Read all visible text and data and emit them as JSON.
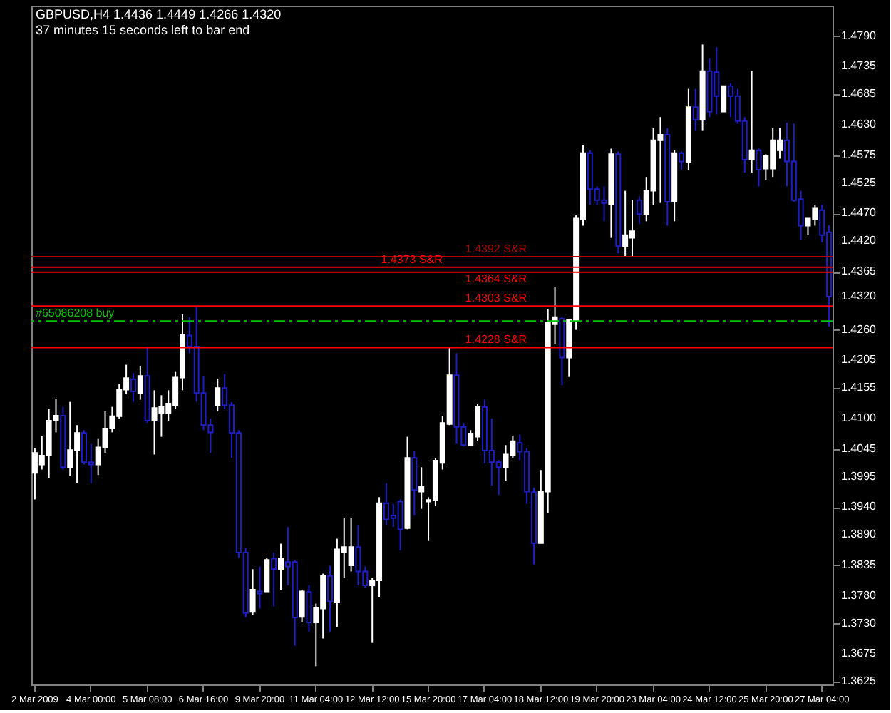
{
  "chart_data": {
    "type": "candlestick",
    "title": "GBPUSD,H4  1.4436 1.4449 1.4266 1.4320",
    "subtitle": "37 minutes 15 seconds left to bar end",
    "categories": [
      "2 Mar 2009",
      null,
      null,
      null,
      null,
      null,
      null,
      null,
      "4 Mar 00:00",
      null,
      null,
      null,
      null,
      null,
      null,
      null,
      "5 Mar 08:00",
      null,
      null,
      null,
      null,
      null,
      null,
      null,
      "6 Mar 16:00",
      null,
      null,
      null,
      null,
      null,
      null,
      null,
      "9 Mar 20:00",
      null,
      null,
      null,
      null,
      null,
      null,
      null,
      "11 Mar 04:00",
      null,
      null,
      null,
      null,
      null,
      null,
      null,
      "12 Mar 12:00",
      null,
      null,
      null,
      null,
      null,
      null,
      null,
      "15 Mar 20:00",
      null,
      null,
      null,
      null,
      null,
      null,
      null,
      "17 Mar 04:00",
      null,
      null,
      null,
      null,
      null,
      null,
      null,
      "18 Mar 12:00",
      null,
      null,
      null,
      null,
      null,
      null,
      null,
      "19 Mar 20:00",
      null,
      null,
      null,
      null,
      null,
      null,
      null,
      "23 Mar 04:00",
      null,
      null,
      null,
      null,
      null,
      null,
      null,
      "24 Mar 12:00",
      null,
      null,
      null,
      null,
      null,
      null,
      null,
      "25 Mar 20:00",
      null,
      null,
      null,
      null,
      null,
      null,
      null,
      "27 Mar 04:00",
      null
    ],
    "ohlc": [
      [
        1.4002,
        1.4046,
        1.3954,
        1.4038
      ],
      [
        1.4017,
        1.4069,
        1.4008,
        1.4033
      ],
      [
        1.4033,
        1.4117,
        1.3992,
        1.4096
      ],
      [
        1.4096,
        1.4136,
        1.4075,
        1.4105
      ],
      [
        1.4105,
        1.4121,
        1.4008,
        1.4012
      ],
      [
        1.4012,
        1.413,
        1.3996,
        1.4043
      ],
      [
        1.4042,
        1.4088,
        1.3983,
        1.4074
      ],
      [
        1.4074,
        1.4079,
        1.4017,
        1.4021
      ],
      [
        1.4021,
        1.4054,
        1.3983,
        1.4017
      ],
      [
        1.4017,
        1.4063,
        1.3998,
        1.4048
      ],
      [
        1.4048,
        1.4113,
        1.4038,
        1.4082
      ],
      [
        1.4082,
        1.4121,
        1.4075,
        1.4104
      ],
      [
        1.4104,
        1.4163,
        1.41,
        1.4152
      ],
      [
        1.4152,
        1.4197,
        1.4144,
        1.4173
      ],
      [
        1.4171,
        1.4182,
        1.413,
        1.4149
      ],
      [
        1.4146,
        1.4194,
        1.4134,
        1.4177
      ],
      [
        1.4177,
        1.423,
        1.4092,
        1.4096
      ],
      [
        1.4096,
        1.4151,
        1.4035,
        1.4119
      ],
      [
        1.4109,
        1.4142,
        1.4067,
        1.4121
      ],
      [
        1.411,
        1.4151,
        1.4096,
        1.4127
      ],
      [
        1.4124,
        1.4184,
        1.4117,
        1.4174
      ],
      [
        1.4174,
        1.4288,
        1.4151,
        1.4251
      ],
      [
        1.425,
        1.4283,
        1.4218,
        1.423
      ],
      [
        1.423,
        1.4301,
        1.413,
        1.4146
      ],
      [
        1.4146,
        1.4176,
        1.4079,
        1.4088
      ],
      [
        1.4088,
        1.41,
        1.4038,
        1.4075
      ],
      [
        1.4124,
        1.4172,
        1.4113,
        1.4155
      ],
      [
        1.4155,
        1.418,
        1.4117,
        1.4124
      ],
      [
        1.4124,
        1.413,
        1.4029,
        1.4074
      ],
      [
        1.4074,
        1.4079,
        1.3849,
        1.3858
      ],
      [
        1.3858,
        1.3866,
        1.3741,
        1.3749
      ],
      [
        1.3751,
        1.3828,
        1.3745,
        1.3791
      ],
      [
        1.3788,
        1.3833,
        1.3757,
        1.3784
      ],
      [
        1.3788,
        1.3848,
        1.3787,
        1.3845
      ],
      [
        1.3847,
        1.3858,
        1.3761,
        1.3828
      ],
      [
        1.3828,
        1.3874,
        1.3791,
        1.3847
      ],
      [
        1.3841,
        1.3904,
        1.3799,
        1.3833
      ],
      [
        1.3841,
        1.3845,
        1.369,
        1.3741
      ],
      [
        1.3742,
        1.3791,
        1.3732,
        1.3788
      ],
      [
        1.3787,
        1.3799,
        1.3715,
        1.3732
      ],
      [
        1.3732,
        1.3766,
        1.3653,
        1.3759
      ],
      [
        1.3757,
        1.382,
        1.3703,
        1.3816
      ],
      [
        1.3816,
        1.3834,
        1.3715,
        1.377
      ],
      [
        1.3768,
        1.3883,
        1.3724,
        1.3864
      ],
      [
        1.3858,
        1.392,
        1.3812,
        1.3868
      ],
      [
        1.3835,
        1.392,
        1.3824,
        1.3868
      ],
      [
        1.3868,
        1.3908,
        1.3799,
        1.3824
      ],
      [
        1.3824,
        1.3833,
        1.3795,
        1.3799
      ],
      [
        1.3799,
        1.3812,
        1.3695,
        1.3808
      ],
      [
        1.3808,
        1.3958,
        1.3778,
        1.3947
      ],
      [
        1.3947,
        1.3983,
        1.3908,
        1.3918
      ],
      [
        1.3925,
        1.3946,
        1.3904,
        1.392
      ],
      [
        1.395,
        1.3954,
        1.3862,
        1.39
      ],
      [
        1.3902,
        1.4067,
        1.39,
        1.4029
      ],
      [
        1.4029,
        1.4042,
        1.3925,
        1.3971
      ],
      [
        1.3968,
        1.4012,
        1.3937,
        1.3977
      ],
      [
        1.395,
        1.3958,
        1.3879,
        1.3953
      ],
      [
        1.3953,
        1.4029,
        1.3942,
        1.4024
      ],
      [
        1.402,
        1.4105,
        1.4008,
        1.4092
      ],
      [
        1.409,
        1.4228,
        1.4088,
        1.4178
      ],
      [
        1.4178,
        1.4218,
        1.4054,
        1.4085
      ],
      [
        1.4085,
        1.4092,
        1.405,
        1.4052
      ],
      [
        1.4052,
        1.4079,
        1.405,
        1.4073
      ],
      [
        1.4067,
        1.4126,
        1.4059,
        1.4121
      ],
      [
        1.4121,
        1.4134,
        1.4019,
        1.4042
      ],
      [
        1.4042,
        1.41,
        1.3979,
        1.4021
      ],
      [
        1.4021,
        1.4025,
        1.3962,
        1.4012
      ],
      [
        1.4012,
        1.4052,
        1.3988,
        1.4035
      ],
      [
        1.4033,
        1.4069,
        1.4029,
        1.4059
      ],
      [
        1.4056,
        1.4071,
        1.4025,
        1.404
      ],
      [
        1.404,
        1.4046,
        1.3946,
        1.3968
      ],
      [
        1.3967,
        1.3975,
        1.3837,
        1.3875
      ],
      [
        1.3875,
        1.4007,
        1.3875,
        1.3968
      ],
      [
        1.3968,
        1.4298,
        1.3929,
        1.4273
      ],
      [
        1.427,
        1.4338,
        1.4235,
        1.4283
      ],
      [
        1.428,
        1.4283,
        1.416,
        1.421
      ],
      [
        1.421,
        1.428,
        1.4175,
        1.4278
      ],
      [
        1.4275,
        1.4468,
        1.426,
        1.4461
      ],
      [
        1.4459,
        1.4594,
        1.4448,
        1.4579
      ],
      [
        1.4579,
        1.4584,
        1.4486,
        1.4514
      ],
      [
        1.4514,
        1.4519,
        1.4486,
        1.4494
      ],
      [
        1.4494,
        1.4519,
        1.4456,
        1.4489
      ],
      [
        1.4486,
        1.4587,
        1.4426,
        1.4577
      ],
      [
        1.4577,
        1.4582,
        1.4398,
        1.4411
      ],
      [
        1.4411,
        1.4511,
        1.4393,
        1.4431
      ],
      [
        1.4426,
        1.4494,
        1.4393,
        1.4438
      ],
      [
        1.4494,
        1.4501,
        1.4451,
        1.4469
      ],
      [
        1.4469,
        1.4536,
        1.4456,
        1.4511
      ],
      [
        1.4511,
        1.4624,
        1.4486,
        1.4602
      ],
      [
        1.4602,
        1.4644,
        1.4489,
        1.4612
      ],
      [
        1.4612,
        1.4624,
        1.4448,
        1.4491
      ],
      [
        1.4491,
        1.4584,
        1.4456,
        1.4579
      ],
      [
        1.4579,
        1.4582,
        1.4549,
        1.4564
      ],
      [
        1.4562,
        1.4695,
        1.4549,
        1.4662
      ],
      [
        1.4662,
        1.4695,
        1.4619,
        1.4639
      ],
      [
        1.4639,
        1.4775,
        1.4619,
        1.4727
      ],
      [
        1.4727,
        1.475,
        1.4644,
        1.4654
      ],
      [
        1.4725,
        1.477,
        1.4649,
        1.4682
      ],
      [
        1.4654,
        1.47,
        1.4654,
        1.47
      ],
      [
        1.47,
        1.4705,
        1.4644,
        1.4682
      ],
      [
        1.4682,
        1.4695,
        1.4632,
        1.4637
      ],
      [
        1.4637,
        1.4644,
        1.4544,
        1.4567
      ],
      [
        1.4567,
        1.4727,
        1.4544,
        1.4584
      ],
      [
        1.4584,
        1.4587,
        1.4519,
        1.4549
      ],
      [
        1.4551,
        1.4577,
        1.4531,
        1.4574
      ],
      [
        1.4551,
        1.4624,
        1.4536,
        1.4602
      ],
      [
        1.4584,
        1.4624,
        1.4569,
        1.4602
      ],
      [
        1.4602,
        1.4634,
        1.4519,
        1.4564
      ],
      [
        1.4564,
        1.4632,
        1.4491,
        1.4494
      ],
      [
        1.4496,
        1.4511,
        1.4423,
        1.4448
      ],
      [
        1.4448,
        1.4461,
        1.4431,
        1.4461
      ],
      [
        1.4459,
        1.4486,
        1.4448,
        1.4479
      ],
      [
        1.4476,
        1.4486,
        1.4418,
        1.4431
      ],
      [
        1.4436,
        1.4449,
        1.4266,
        1.432
      ]
    ],
    "colors": [
      "#ffffff",
      "#ffffff",
      "#ffffff",
      "#ffffff",
      "#1e1ec8",
      "#ffffff",
      "#ffffff",
      "#1e1ec8",
      "#1e1ec8",
      "#ffffff",
      "#ffffff",
      "#ffffff",
      "#ffffff",
      "#ffffff",
      "#1e1ec8",
      "#ffffff",
      "#1e1ec8",
      "#ffffff",
      "#ffffff",
      "#ffffff",
      "#ffffff",
      "#ffffff",
      "#1e1ec8",
      "#1e1ec8",
      "#1e1ec8",
      "#1e1ec8",
      "#ffffff",
      "#1e1ec8",
      "#1e1ec8",
      "#1e1ec8",
      "#1e1ec8",
      "#ffffff",
      "#1e1ec8",
      "#ffffff",
      "#1e1ec8",
      "#ffffff",
      "#1e1ec8",
      "#1e1ec8",
      "#ffffff",
      "#1e1ec8",
      "#ffffff",
      "#ffffff",
      "#1e1ec8",
      "#ffffff",
      "#ffffff",
      "#ffffff",
      "#1e1ec8",
      "#1e1ec8",
      "#ffffff",
      "#ffffff",
      "#1e1ec8",
      "#1e1ec8",
      "#1e1ec8",
      "#ffffff",
      "#1e1ec8",
      "#ffffff",
      "#ffffff",
      "#ffffff",
      "#ffffff",
      "#ffffff",
      "#1e1ec8",
      "#1e1ec8",
      "#ffffff",
      "#ffffff",
      "#1e1ec8",
      "#1e1ec8",
      "#1e1ec8",
      "#ffffff",
      "#ffffff",
      "#1e1ec8",
      "#1e1ec8",
      "#1e1ec8",
      "#ffffff",
      "#ffffff",
      "#ffffff",
      "#1e1ec8",
      "#ffffff",
      "#ffffff",
      "#ffffff",
      "#1e1ec8",
      "#1e1ec8",
      "#1e1ec8",
      "#ffffff",
      "#1e1ec8",
      "#ffffff",
      "#ffffff",
      "#1e1ec8",
      "#ffffff",
      "#ffffff",
      "#ffffff",
      "#1e1ec8",
      "#ffffff",
      "#1e1ec8",
      "#ffffff",
      "#1e1ec8",
      "#ffffff",
      "#1e1ec8",
      "#1e1ec8",
      "#ffffff",
      "#1e1ec8",
      "#1e1ec8",
      "#1e1ec8",
      "#ffffff",
      "#1e1ec8",
      "#ffffff",
      "#ffffff",
      "#ffffff",
      "#1e1ec8",
      "#1e1ec8",
      "#1e1ec8",
      "#ffffff",
      "#ffffff",
      "#1e1ec8",
      "#1e1ec8"
    ],
    "ylim": [
      1.362,
      1.4845
    ],
    "yticks": [
      {
        "value": 1.479,
        "label": "1.4790"
      },
      1.4735,
      1.4685,
      {
        "value": 1.463,
        "label": "1.4630"
      },
      1.4575,
      1.4525,
      {
        "value": 1.447,
        "label": "1.4470"
      },
      {
        "value": 1.442,
        "label": "1.4420"
      },
      1.4365,
      {
        "value": 1.432,
        "label": "1.4320"
      },
      {
        "value": 1.426,
        "label": "1.4260"
      },
      1.4205,
      1.4155,
      {
        "value": 1.41,
        "label": "1.4100"
      },
      1.4045,
      1.3995,
      {
        "value": 1.394,
        "label": "1.3940"
      },
      {
        "value": 1.389,
        "label": "1.3890"
      },
      1.3835,
      {
        "value": 1.378,
        "label": "1.3780"
      },
      {
        "value": 1.373,
        "label": "1.3730"
      },
      1.3675,
      1.3625
    ],
    "ref_lines": [
      {
        "axis": "y",
        "value": 1.4392,
        "label": "1.4392 S&R",
        "color": "#b00000"
      },
      {
        "axis": "y",
        "value": 1.4373,
        "label": "1.4373 S&R",
        "color": "#ff0000"
      },
      {
        "axis": "y",
        "value": 1.4364,
        "label": "1.4364 S&R",
        "color": "#ff0000"
      },
      {
        "axis": "y",
        "value": 1.4303,
        "label": "1.4303 S&R",
        "color": "#ff0000"
      },
      {
        "axis": "y",
        "value": 1.4228,
        "label": "1.4228 S&R",
        "color": "#ff0000"
      },
      {
        "axis": "y",
        "value": 1.4276,
        "label": "#65086208 buy",
        "color": "#00c000",
        "line_style": "dashed"
      }
    ]
  }
}
